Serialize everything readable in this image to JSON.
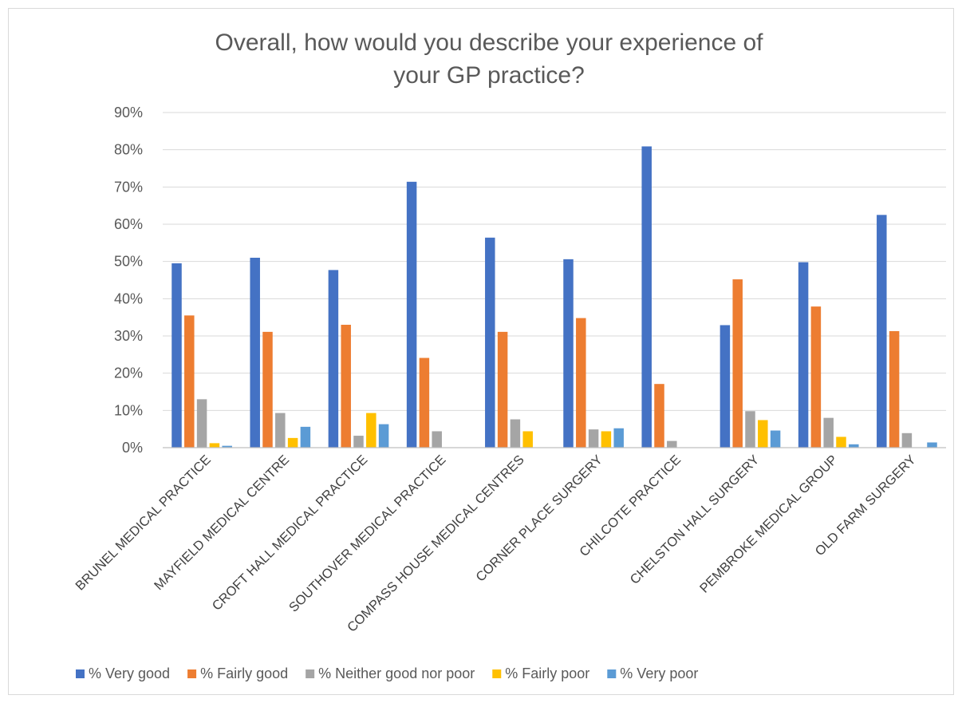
{
  "chart_data": {
    "type": "bar",
    "title_lines": [
      "Overall, how would you describe your experience of",
      "your GP practice?"
    ],
    "categories": [
      "BRUNEL MEDICAL PRACTICE",
      "MAYFIELD MEDICAL CENTRE",
      "CROFT HALL MEDICAL PRACTICE",
      "SOUTHOVER MEDICAL PRACTICE",
      "COMPASS HOUSE MEDICAL CENTRES",
      "CORNER PLACE SURGERY",
      "CHILCOTE PRACTICE",
      "CHELSTON HALL SURGERY",
      "PEMBROKE MEDICAL GROUP",
      "OLD FARM SURGERY"
    ],
    "series": [
      {
        "name": "% Very good",
        "color": "#4472c4",
        "values": [
          49.5,
          51.0,
          47.7,
          71.4,
          56.4,
          50.6,
          80.9,
          32.9,
          49.8,
          62.5
        ]
      },
      {
        "name": "% Fairly good",
        "color": "#ed7d31",
        "values": [
          35.5,
          31.1,
          33.0,
          24.1,
          31.1,
          34.8,
          17.1,
          45.2,
          37.9,
          31.3
        ]
      },
      {
        "name": "% Neither good nor poor",
        "color": "#a5a5a5",
        "values": [
          13.0,
          9.3,
          3.2,
          4.4,
          7.6,
          4.9,
          1.8,
          9.8,
          8.0,
          3.9
        ]
      },
      {
        "name": "% Fairly poor",
        "color": "#ffc000",
        "values": [
          1.2,
          2.6,
          9.3,
          0,
          4.4,
          4.4,
          0,
          7.4,
          2.9,
          0
        ]
      },
      {
        "name": "% Very poor",
        "color": "#5b9bd5",
        "values": [
          0.5,
          5.6,
          6.3,
          0,
          0,
          5.2,
          0,
          4.6,
          0.9,
          1.4
        ]
      }
    ],
    "y_ticks": [
      "0%",
      "10%",
      "20%",
      "30%",
      "40%",
      "50%",
      "60%",
      "70%",
      "80%",
      "90%"
    ],
    "ylim": [
      0,
      90
    ],
    "grid": true,
    "legend_position": "bottom"
  }
}
